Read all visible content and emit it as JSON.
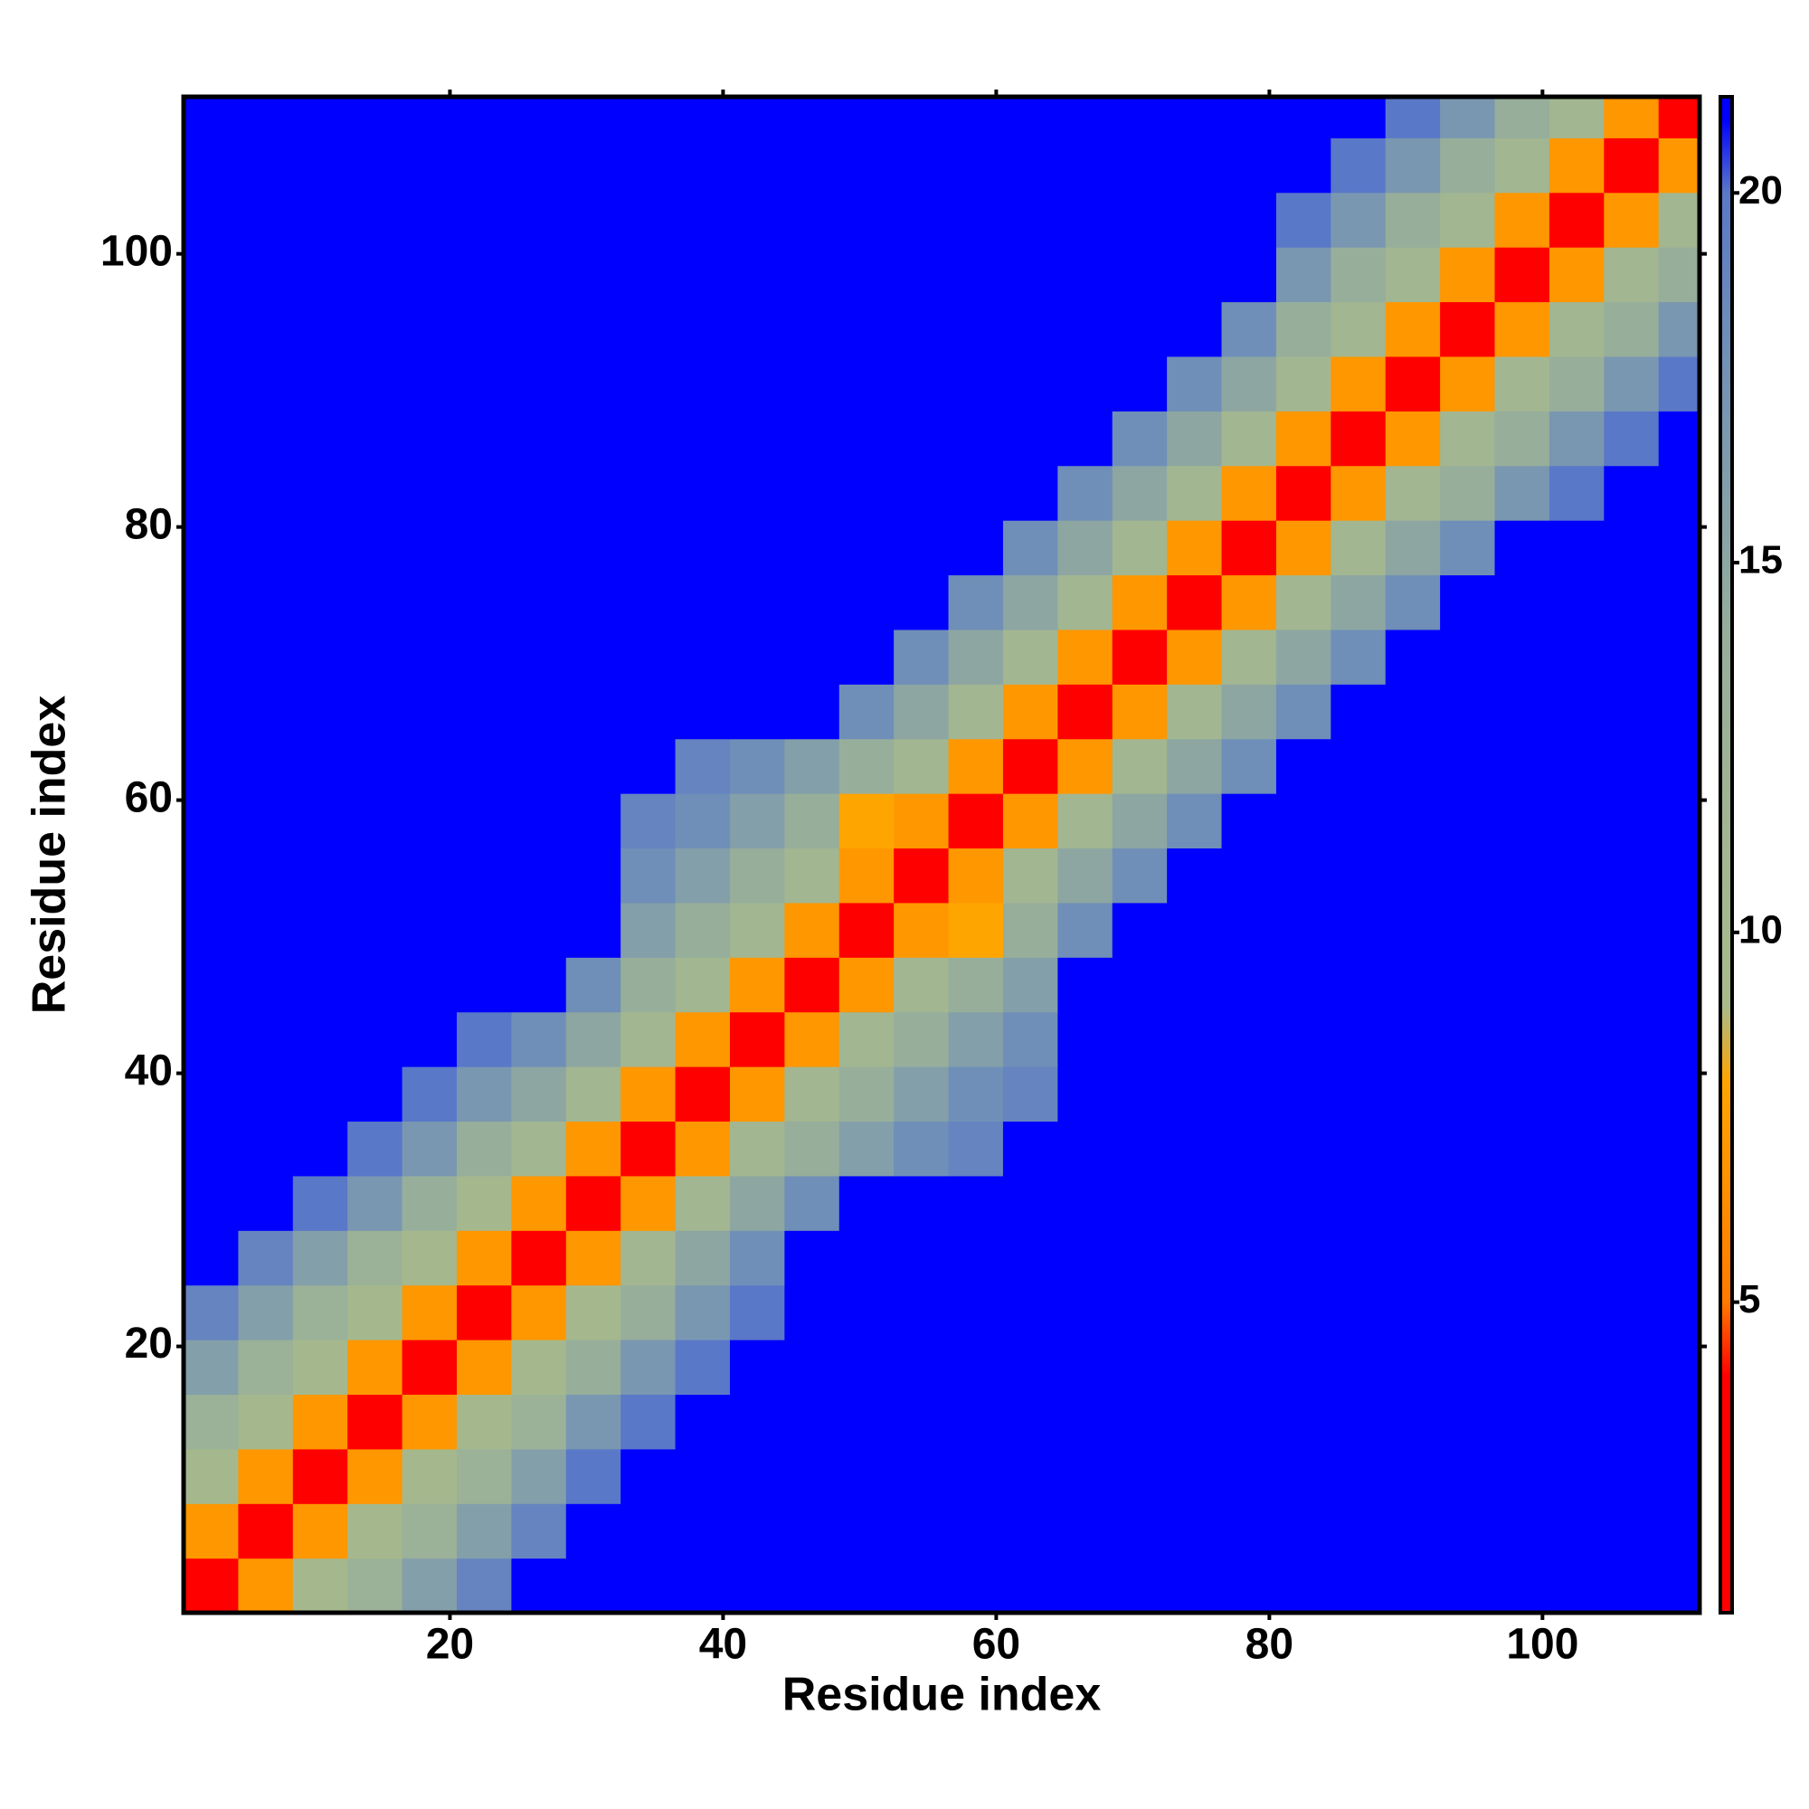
{
  "chart_data": {
    "type": "heatmap",
    "x_label": "Residue index",
    "y_label": "Residue index",
    "x": [
      2.5,
      6.5,
      10.5,
      14.5,
      18.5,
      22.5,
      26.5,
      30.5,
      34.5,
      38.5,
      42.5,
      46.5,
      50.5,
      54.5,
      58.5,
      62.5,
      66.5,
      70.5,
      74.5,
      78.5,
      82.5,
      86.5,
      90.5,
      94.5,
      98.5,
      102.5,
      106.5,
      110.5
    ],
    "y": [
      2.5,
      6.5,
      10.5,
      14.5,
      18.5,
      22.5,
      26.5,
      30.5,
      34.5,
      38.5,
      42.5,
      46.5,
      50.5,
      54.5,
      58.5,
      62.5,
      66.5,
      70.5,
      74.5,
      78.5,
      82.5,
      86.5,
      90.5,
      94.5,
      98.5,
      102.5,
      106.5,
      110.5
    ],
    "xlim": [
      0.5,
      111.5
    ],
    "ylim": [
      0.5,
      111.5
    ],
    "xticks": [
      20,
      40,
      60,
      80,
      100
    ],
    "yticks": [
      20,
      40,
      60,
      80,
      100
    ],
    "zlim": [
      0.8,
      21.3
    ],
    "zticks": [
      5,
      10,
      15,
      20
    ],
    "colorscale": [
      [
        0.8,
        "#ff0000"
      ],
      [
        4,
        "#ff0000"
      ],
      [
        5,
        "#ff7a00"
      ],
      [
        8,
        "#ffa500"
      ],
      [
        9,
        "#a9bb8a"
      ],
      [
        14,
        "#97ae9b"
      ],
      [
        18,
        "#6f8fb8"
      ],
      [
        20,
        "#5a78c8"
      ],
      [
        21,
        "#0000ff"
      ]
    ],
    "z": [
      [
        4,
        7,
        10,
        13,
        16,
        19,
        21,
        21,
        21,
        21,
        21,
        21,
        21,
        21,
        21,
        21,
        21,
        21,
        21,
        21,
        21,
        21,
        21,
        21,
        21,
        21,
        21,
        21
      ],
      [
        7,
        4,
        7,
        10,
        13,
        16,
        19,
        21,
        21,
        21,
        21,
        21,
        21,
        21,
        21,
        21,
        21,
        21,
        21,
        21,
        21,
        21,
        21,
        21,
        21,
        21,
        21,
        21
      ],
      [
        10,
        7,
        4,
        7,
        10,
        13,
        16,
        20,
        21,
        21,
        21,
        21,
        21,
        21,
        21,
        21,
        21,
        21,
        21,
        21,
        21,
        21,
        21,
        21,
        21,
        21,
        21,
        21
      ],
      [
        13,
        10,
        7,
        4,
        7,
        10,
        13,
        17,
        20,
        21,
        21,
        21,
        21,
        21,
        21,
        21,
        21,
        21,
        21,
        21,
        21,
        21,
        21,
        21,
        21,
        21,
        21,
        21
      ],
      [
        16,
        13,
        10,
        7,
        4,
        7,
        10,
        14,
        17,
        20,
        21,
        21,
        21,
        21,
        21,
        21,
        21,
        21,
        21,
        21,
        21,
        21,
        21,
        21,
        21,
        21,
        21,
        21
      ],
      [
        19,
        16,
        13,
        10,
        7,
        4,
        7,
        10,
        14,
        17,
        20,
        21,
        21,
        21,
        21,
        21,
        21,
        21,
        21,
        21,
        21,
        21,
        21,
        21,
        21,
        21,
        21,
        21
      ],
      [
        21,
        19,
        16,
        13,
        10,
        7,
        4,
        7,
        11,
        15,
        18,
        21,
        21,
        21,
        21,
        21,
        21,
        21,
        21,
        21,
        21,
        21,
        21,
        21,
        21,
        21,
        21,
        21
      ],
      [
        21,
        21,
        20,
        17,
        14,
        10,
        7,
        4,
        7,
        11,
        15,
        18,
        21,
        21,
        21,
        21,
        21,
        21,
        21,
        21,
        21,
        21,
        21,
        21,
        21,
        21,
        21,
        21
      ],
      [
        21,
        21,
        21,
        20,
        17,
        14,
        11,
        7,
        4,
        7,
        11,
        14,
        16,
        18,
        19,
        21,
        21,
        21,
        21,
        21,
        21,
        21,
        21,
        21,
        21,
        21,
        21,
        21
      ],
      [
        21,
        21,
        21,
        21,
        20,
        17,
        15,
        11,
        7,
        4,
        7,
        11,
        14,
        16,
        18,
        19,
        21,
        21,
        21,
        21,
        21,
        21,
        21,
        21,
        21,
        21,
        21,
        21
      ],
      [
        21,
        21,
        21,
        21,
        21,
        20,
        18,
        15,
        11,
        7,
        4,
        7,
        11,
        14,
        16,
        18,
        21,
        21,
        21,
        21,
        21,
        21,
        21,
        21,
        21,
        21,
        21,
        21
      ],
      [
        21,
        21,
        21,
        21,
        21,
        21,
        21,
        18,
        14,
        11,
        7,
        4,
        7,
        11,
        14,
        16,
        21,
        21,
        21,
        21,
        21,
        21,
        21,
        21,
        21,
        21,
        21,
        21
      ],
      [
        21,
        21,
        21,
        21,
        21,
        21,
        21,
        21,
        16,
        14,
        11,
        7,
        4,
        7,
        8,
        14,
        18,
        21,
        21,
        21,
        21,
        21,
        21,
        21,
        21,
        21,
        21,
        21
      ],
      [
        21,
        21,
        21,
        21,
        21,
        21,
        21,
        21,
        18,
        16,
        14,
        11,
        7,
        4,
        7,
        11,
        15,
        18,
        21,
        21,
        21,
        21,
        21,
        21,
        21,
        21,
        21,
        21
      ],
      [
        21,
        21,
        21,
        21,
        21,
        21,
        21,
        21,
        19,
        18,
        16,
        14,
        8,
        7,
        4,
        7,
        11,
        15,
        18,
        21,
        21,
        21,
        21,
        21,
        21,
        21,
        21,
        21
      ],
      [
        21,
        21,
        21,
        21,
        21,
        21,
        21,
        21,
        21,
        19,
        18,
        16,
        14,
        11,
        7,
        4,
        7,
        11,
        15,
        18,
        21,
        21,
        21,
        21,
        21,
        21,
        21,
        21
      ],
      [
        21,
        21,
        21,
        21,
        21,
        21,
        21,
        21,
        21,
        21,
        21,
        21,
        18,
        15,
        11,
        7,
        4,
        7,
        11,
        15,
        18,
        21,
        21,
        21,
        21,
        21,
        21,
        21
      ],
      [
        21,
        21,
        21,
        21,
        21,
        21,
        21,
        21,
        21,
        21,
        21,
        21,
        21,
        18,
        15,
        11,
        7,
        4,
        7,
        11,
        15,
        18,
        21,
        21,
        21,
        21,
        21,
        21
      ],
      [
        21,
        21,
        21,
        21,
        21,
        21,
        21,
        21,
        21,
        21,
        21,
        21,
        21,
        21,
        18,
        15,
        11,
        7,
        4,
        7,
        11,
        15,
        18,
        21,
        21,
        21,
        21,
        21
      ],
      [
        21,
        21,
        21,
        21,
        21,
        21,
        21,
        21,
        21,
        21,
        21,
        21,
        21,
        21,
        21,
        18,
        15,
        11,
        7,
        4,
        7,
        11,
        15,
        18,
        21,
        21,
        21,
        21
      ],
      [
        21,
        21,
        21,
        21,
        21,
        21,
        21,
        21,
        21,
        21,
        21,
        21,
        21,
        21,
        21,
        21,
        18,
        15,
        11,
        7,
        4,
        7,
        11,
        14,
        17,
        20,
        21,
        21
      ],
      [
        21,
        21,
        21,
        21,
        21,
        21,
        21,
        21,
        21,
        21,
        21,
        21,
        21,
        21,
        21,
        21,
        21,
        18,
        15,
        11,
        7,
        4,
        7,
        11,
        14,
        17,
        20,
        21
      ],
      [
        21,
        21,
        21,
        21,
        21,
        21,
        21,
        21,
        21,
        21,
        21,
        21,
        21,
        21,
        21,
        21,
        21,
        21,
        18,
        15,
        11,
        7,
        4,
        7,
        11,
        14,
        17,
        20
      ],
      [
        21,
        21,
        21,
        21,
        21,
        21,
        21,
        21,
        21,
        21,
        21,
        21,
        21,
        21,
        21,
        21,
        21,
        21,
        21,
        18,
        14,
        11,
        7,
        4,
        7,
        11,
        14,
        17
      ],
      [
        21,
        21,
        21,
        21,
        21,
        21,
        21,
        21,
        21,
        21,
        21,
        21,
        21,
        21,
        21,
        21,
        21,
        21,
        21,
        21,
        17,
        14,
        11,
        7,
        4,
        7,
        11,
        14
      ],
      [
        21,
        21,
        21,
        21,
        21,
        21,
        21,
        21,
        21,
        21,
        21,
        21,
        21,
        21,
        21,
        21,
        21,
        21,
        21,
        21,
        20,
        17,
        14,
        11,
        7,
        4,
        7,
        11
      ],
      [
        21,
        21,
        21,
        21,
        21,
        21,
        21,
        21,
        21,
        21,
        21,
        21,
        21,
        21,
        21,
        21,
        21,
        21,
        21,
        21,
        21,
        20,
        17,
        14,
        11,
        7,
        4,
        7
      ],
      [
        21,
        21,
        21,
        21,
        21,
        21,
        21,
        21,
        21,
        21,
        21,
        21,
        21,
        21,
        21,
        21,
        21,
        21,
        21,
        21,
        21,
        21,
        20,
        17,
        14,
        11,
        7,
        4
      ]
    ]
  }
}
